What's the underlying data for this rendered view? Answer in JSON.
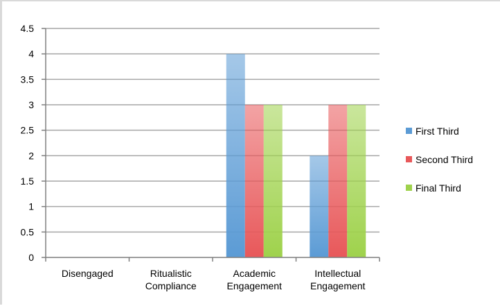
{
  "chart_data": {
    "type": "bar",
    "categories": [
      [
        "Disengaged"
      ],
      [
        "Ritualistic",
        "Compliance"
      ],
      [
        "Academic",
        "Engagement"
      ],
      [
        "Intellectual",
        "Engagement"
      ]
    ],
    "series": [
      {
        "name": "First Third",
        "values": [
          0,
          0,
          4,
          2
        ],
        "color": "#5b9bd5"
      },
      {
        "name": "Second Third",
        "values": [
          0,
          0,
          3,
          3
        ],
        "color": "#e8585a"
      },
      {
        "name": "Final Third",
        "values": [
          0,
          0,
          3,
          3
        ],
        "color": "#9fd24c"
      }
    ],
    "ylim": [
      0,
      4.5
    ],
    "yticks": [
      "0",
      "0.5",
      "1",
      "1.5",
      "2",
      "2.5",
      "3",
      "3.5",
      "4",
      "4.5"
    ],
    "grid": true,
    "legend_position": "right",
    "title": "",
    "xlabel": "",
    "ylabel": ""
  }
}
